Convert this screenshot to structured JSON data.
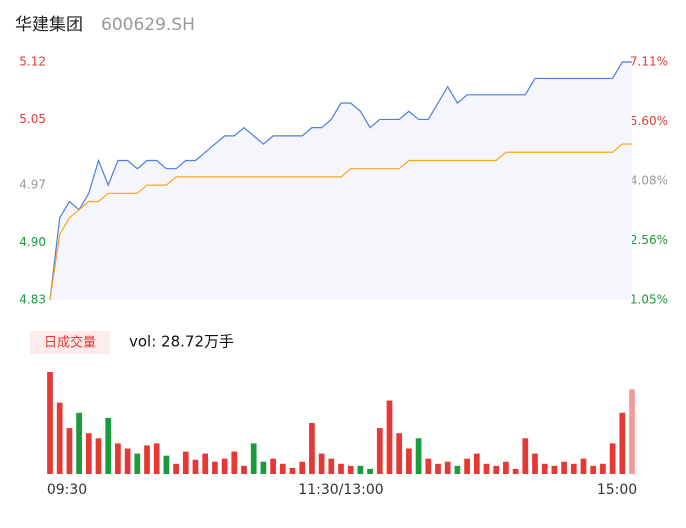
{
  "chart_data": {
    "type": "line",
    "title": "华建集团",
    "subtitle": "600629.SH",
    "x": [
      0,
      4,
      8,
      12,
      16,
      20,
      24,
      28,
      32,
      36,
      40,
      44,
      48,
      52,
      56,
      60,
      64,
      68,
      72,
      76,
      80,
      84,
      88,
      92,
      96,
      100,
      104,
      108,
      112,
      116,
      120,
      124,
      128,
      132,
      136,
      140,
      144,
      148,
      152,
      156,
      160,
      164,
      168,
      172,
      176,
      180,
      184,
      188,
      192,
      196,
      200,
      204,
      208,
      212,
      216,
      220,
      224,
      228,
      232,
      236,
      240
    ],
    "xlim": [
      0,
      240
    ],
    "xticks": [
      {
        "value": 0,
        "label": "09:30"
      },
      {
        "value": 120,
        "label": "11:30/13:00"
      },
      {
        "value": 240,
        "label": "15:00"
      }
    ],
    "ylim": [
      4.83,
      5.12
    ],
    "yticks": [
      4.83,
      {
        "value": 4.9,
        "label": "4.90"
      },
      4.97,
      5.05,
      5.12
    ],
    "ytick_colors": [
      "#1a9b3c",
      "#1a9b3c",
      "#999999",
      "#e53935",
      "#e53935"
    ],
    "y2lim": [
      1.05,
      7.11
    ],
    "y2ticks": [
      {
        "value": 1.05,
        "label": "1.05%"
      },
      {
        "value": 2.56,
        "label": "2.56%"
      },
      {
        "value": 4.08,
        "label": "4.08%"
      },
      {
        "value": 5.6,
        "label": "5.60%"
      },
      {
        "value": 7.11,
        "label": "7.11%"
      }
    ],
    "y2tick_colors": [
      "#1a9b3c",
      "#1a9b3c",
      "#999999",
      "#e53935",
      "#e53935"
    ],
    "series": [
      {
        "name": "price",
        "color": "#4a7fe0",
        "values": [
          4.83,
          4.93,
          4.95,
          4.94,
          4.96,
          5.0,
          4.97,
          5.0,
          5.0,
          4.99,
          5.0,
          5.0,
          4.99,
          4.99,
          5.0,
          5.0,
          5.01,
          5.02,
          5.03,
          5.03,
          5.04,
          5.03,
          5.02,
          5.03,
          5.03,
          5.03,
          5.03,
          5.04,
          5.04,
          5.05,
          5.07,
          5.07,
          5.06,
          5.04,
          5.05,
          5.05,
          5.05,
          5.06,
          5.05,
          5.05,
          5.07,
          5.09,
          5.07,
          5.08,
          5.08,
          5.08,
          5.08,
          5.08,
          5.08,
          5.08,
          5.1,
          5.1,
          5.1,
          5.1,
          5.1,
          5.1,
          5.1,
          5.1,
          5.1,
          5.12,
          5.12
        ]
      },
      {
        "name": "average",
        "color": "#f5a623",
        "values": [
          4.83,
          4.91,
          4.93,
          4.94,
          4.95,
          4.95,
          4.96,
          4.96,
          4.96,
          4.96,
          4.97,
          4.97,
          4.97,
          4.98,
          4.98,
          4.98,
          4.98,
          4.98,
          4.98,
          4.98,
          4.98,
          4.98,
          4.98,
          4.98,
          4.98,
          4.98,
          4.98,
          4.98,
          4.98,
          4.98,
          4.98,
          4.99,
          4.99,
          4.99,
          4.99,
          4.99,
          4.99,
          5.0,
          5.0,
          5.0,
          5.0,
          5.0,
          5.0,
          5.0,
          5.0,
          5.0,
          5.0,
          5.01,
          5.01,
          5.01,
          5.01,
          5.01,
          5.01,
          5.01,
          5.01,
          5.01,
          5.01,
          5.01,
          5.01,
          5.02,
          5.02
        ]
      }
    ],
    "volume_title": "日成交量",
    "volume_label": "vol: 28.72万手",
    "volume_ylim": [
      0,
      100
    ],
    "volume": [
      100,
      70,
      45,
      60,
      40,
      35,
      55,
      30,
      25,
      20,
      28,
      30,
      18,
      10,
      22,
      14,
      20,
      12,
      15,
      22,
      8,
      30,
      12,
      15,
      10,
      6,
      12,
      50,
      20,
      15,
      10,
      8,
      8,
      5,
      45,
      72,
      40,
      25,
      35,
      15,
      10,
      12,
      8,
      15,
      20,
      10,
      8,
      12,
      5,
      35,
      20,
      10,
      8,
      12,
      10,
      15,
      8,
      10,
      30,
      60,
      83
    ],
    "volume_up_color": "#e53935",
    "volume_down_color": "#1a9b3c"
  }
}
